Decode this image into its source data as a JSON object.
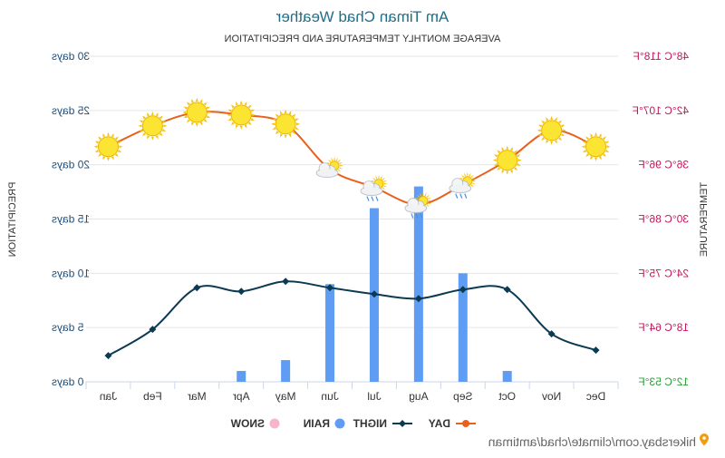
{
  "chart_data": {
    "type": "line+bar",
    "title": "Am Timan Chad Weather",
    "subtitle": "AVERAGE MONTHLY TEMPERATURE AND PRECIPITATION",
    "categories": [
      "Dec",
      "Nov",
      "Oct",
      "Sep",
      "Aug",
      "Jul",
      "Jun",
      "May",
      "Apr",
      "Mar",
      "Feb",
      "Jan"
    ],
    "left_axis": {
      "label": "PRECIPITATION",
      "ticks": [
        "30 days",
        "25 days",
        "20 days",
        "15 days",
        "10 days",
        "5 days",
        "0 days"
      ],
      "range": [
        0,
        30
      ]
    },
    "right_axis": {
      "label": "TEMPERATURE",
      "ticks": [
        "48°C 118°F",
        "42°C 107°F",
        "36°C 96°F",
        "30°C 86°F",
        "24°C 75°F",
        "18°C 64°F",
        "12°C 53°F"
      ],
      "range_c": [
        12,
        48
      ]
    },
    "series": [
      {
        "name": "DAY",
        "color": "#e8601c",
        "unit": "°C",
        "values": [
          38,
          39.8,
          36.5,
          33.8,
          31.6,
          33.5,
          35.5,
          40.5,
          41.5,
          41.8,
          40.3,
          38
        ]
      },
      {
        "name": "NIGHT",
        "color": "#0c3a52",
        "unit": "°C",
        "values": [
          15.5,
          17.3,
          22.2,
          22.2,
          21.2,
          21.7,
          22.4,
          23.1,
          22,
          22.4,
          17.8,
          14.9
        ]
      },
      {
        "name": "RAIN",
        "color": "#5f9cf3",
        "unit": "days",
        "values": [
          0,
          0,
          1,
          10,
          18,
          16,
          9,
          2,
          1,
          0,
          0,
          0
        ]
      },
      {
        "name": "SNOW",
        "color": "#f7b6c8",
        "unit": "days",
        "values": [
          0,
          0,
          0,
          0,
          0,
          0,
          0,
          0,
          0,
          0,
          0,
          0
        ]
      }
    ],
    "weather_icons": [
      "sun",
      "sun",
      "sun",
      "partly-cloudy-rain",
      "partly-cloudy-rain",
      "partly-cloudy-rain",
      "partly-cloudy",
      "sun",
      "sun",
      "sun",
      "sun",
      "sun"
    ],
    "legend": [
      {
        "label": "DAY",
        "color": "#e8601c",
        "marker": "line-dot"
      },
      {
        "label": "NIGHT",
        "color": "#0c3a52",
        "marker": "line-diamond"
      },
      {
        "label": "RAIN",
        "color": "#5f9cf3",
        "marker": "dot"
      },
      {
        "label": "SNOW",
        "color": "#f7b6c8",
        "marker": "dot"
      }
    ],
    "legend_position": "bottom",
    "grid": true,
    "mirrored": true
  },
  "footer": {
    "url": "hikersbay.com/climate/chad/amtiman",
    "pin_icon": "location-pin-icon"
  },
  "colors": {
    "title": "#1f6f8b",
    "left_ticks": "#1f4e79",
    "right_ticks": "#c2185b",
    "right_tick_low": "#2e9d3a",
    "grid": "#e6e6e6"
  }
}
